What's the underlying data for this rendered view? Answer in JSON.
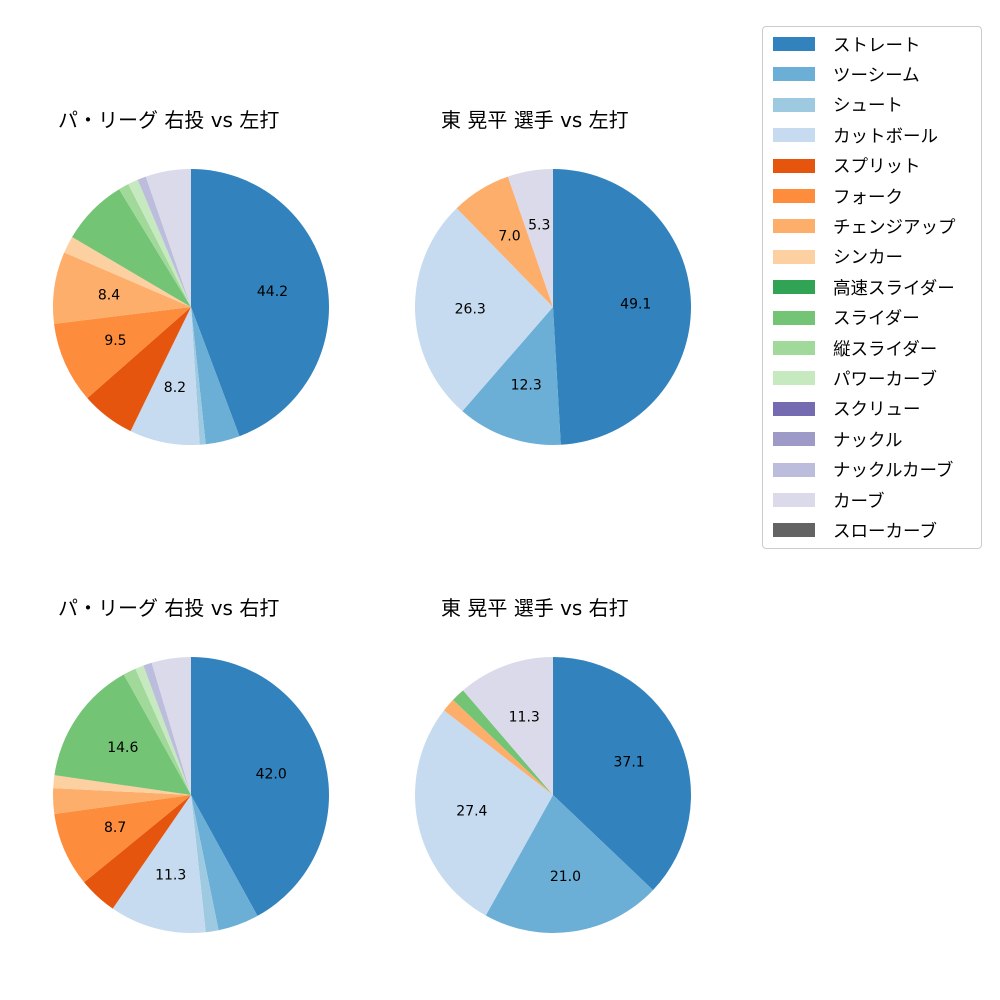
{
  "chart_data": [
    {
      "type": "pie",
      "title": "パ・リーグ 右投 vs 左打",
      "categories": [
        "ストレート",
        "ツーシーム",
        "シュート",
        "カットボール",
        "スプリット",
        "フォーク",
        "チェンジアップ",
        "シンカー",
        "スライダー",
        "縦スライダー",
        "パワーカーブ",
        "ナックルカーブ",
        "カーブ"
      ],
      "values": [
        44.2,
        4.0,
        0.7,
        8.2,
        6.3,
        9.5,
        8.4,
        2.0,
        7.8,
        1.2,
        1.2,
        1.0,
        5.3
      ],
      "labels_shown": [
        "44.2",
        null,
        null,
        "8.2",
        null,
        "9.5",
        "8.4",
        null,
        null,
        null,
        null,
        null,
        null
      ]
    },
    {
      "type": "pie",
      "title": "東 晃平 選手 vs 左打",
      "categories": [
        "ストレート",
        "ツーシーム",
        "カットボール",
        "チェンジアップ",
        "カーブ"
      ],
      "values": [
        49.1,
        12.3,
        26.3,
        7.0,
        5.3
      ],
      "labels_shown": [
        "49.1",
        "12.3",
        "26.3",
        "7.0",
        "5.3"
      ]
    },
    {
      "type": "pie",
      "title": "パ・リーグ 右投 vs 右打",
      "categories": [
        "ストレート",
        "ツーシーム",
        "シュート",
        "カットボール",
        "スプリット",
        "フォーク",
        "チェンジアップ",
        "シンカー",
        "スライダー",
        "縦スライダー",
        "パワーカーブ",
        "ナックルカーブ",
        "カーブ"
      ],
      "values": [
        42.0,
        4.8,
        1.5,
        11.3,
        4.5,
        8.7,
        3.0,
        1.5,
        14.6,
        1.5,
        1.0,
        1.0,
        4.6
      ],
      "labels_shown": [
        "42.0",
        null,
        null,
        "11.3",
        null,
        "8.7",
        null,
        null,
        "14.6",
        null,
        null,
        null,
        null
      ]
    },
    {
      "type": "pie",
      "title": "東 晃平 選手 vs 右打",
      "categories": [
        "ストレート",
        "ツーシーム",
        "カットボール",
        "チェンジアップ",
        "スライダー",
        "カーブ"
      ],
      "values": [
        37.1,
        21.0,
        27.4,
        1.6,
        1.6,
        11.3
      ],
      "labels_shown": [
        "37.1",
        "21.0",
        "27.4",
        null,
        null,
        "11.3"
      ]
    }
  ],
  "colors": {
    "ストレート": "#3182bd",
    "ツーシーム": "#6baed6",
    "シュート": "#9ecae1",
    "カットボール": "#c6dbef",
    "スプリット": "#e6550d",
    "フォーク": "#fd8d3c",
    "チェンジアップ": "#fdae6b",
    "シンカー": "#fdd0a2",
    "高速スライダー": "#31a354",
    "スライダー": "#74c476",
    "縦スライダー": "#a1d99b",
    "パワーカーブ": "#c7e9c0",
    "スクリュー": "#756bb1",
    "ナックル": "#9e9ac8",
    "ナックルカーブ": "#bcbddc",
    "カーブ": "#dadaeb",
    "スローカーブ": "#636363"
  },
  "legend": {
    "items": [
      {
        "label": "ストレート",
        "color": "#3182bd"
      },
      {
        "label": "ツーシーム",
        "color": "#6baed6"
      },
      {
        "label": "シュート",
        "color": "#9ecae1"
      },
      {
        "label": "カットボール",
        "color": "#c6dbef"
      },
      {
        "label": "スプリット",
        "color": "#e6550d"
      },
      {
        "label": "フォーク",
        "color": "#fd8d3c"
      },
      {
        "label": "チェンジアップ",
        "color": "#fdae6b"
      },
      {
        "label": "シンカー",
        "color": "#fdd0a2"
      },
      {
        "label": "高速スライダー",
        "color": "#31a354"
      },
      {
        "label": "スライダー",
        "color": "#74c476"
      },
      {
        "label": "縦スライダー",
        "color": "#a1d99b"
      },
      {
        "label": "パワーカーブ",
        "color": "#c7e9c0"
      },
      {
        "label": "スクリュー",
        "color": "#756bb1"
      },
      {
        "label": "ナックル",
        "color": "#9e9ac8"
      },
      {
        "label": "ナックルカーブ",
        "color": "#bcbddc"
      },
      {
        "label": "カーブ",
        "color": "#dadaeb"
      },
      {
        "label": "スローカーブ",
        "color": "#636363"
      }
    ]
  }
}
